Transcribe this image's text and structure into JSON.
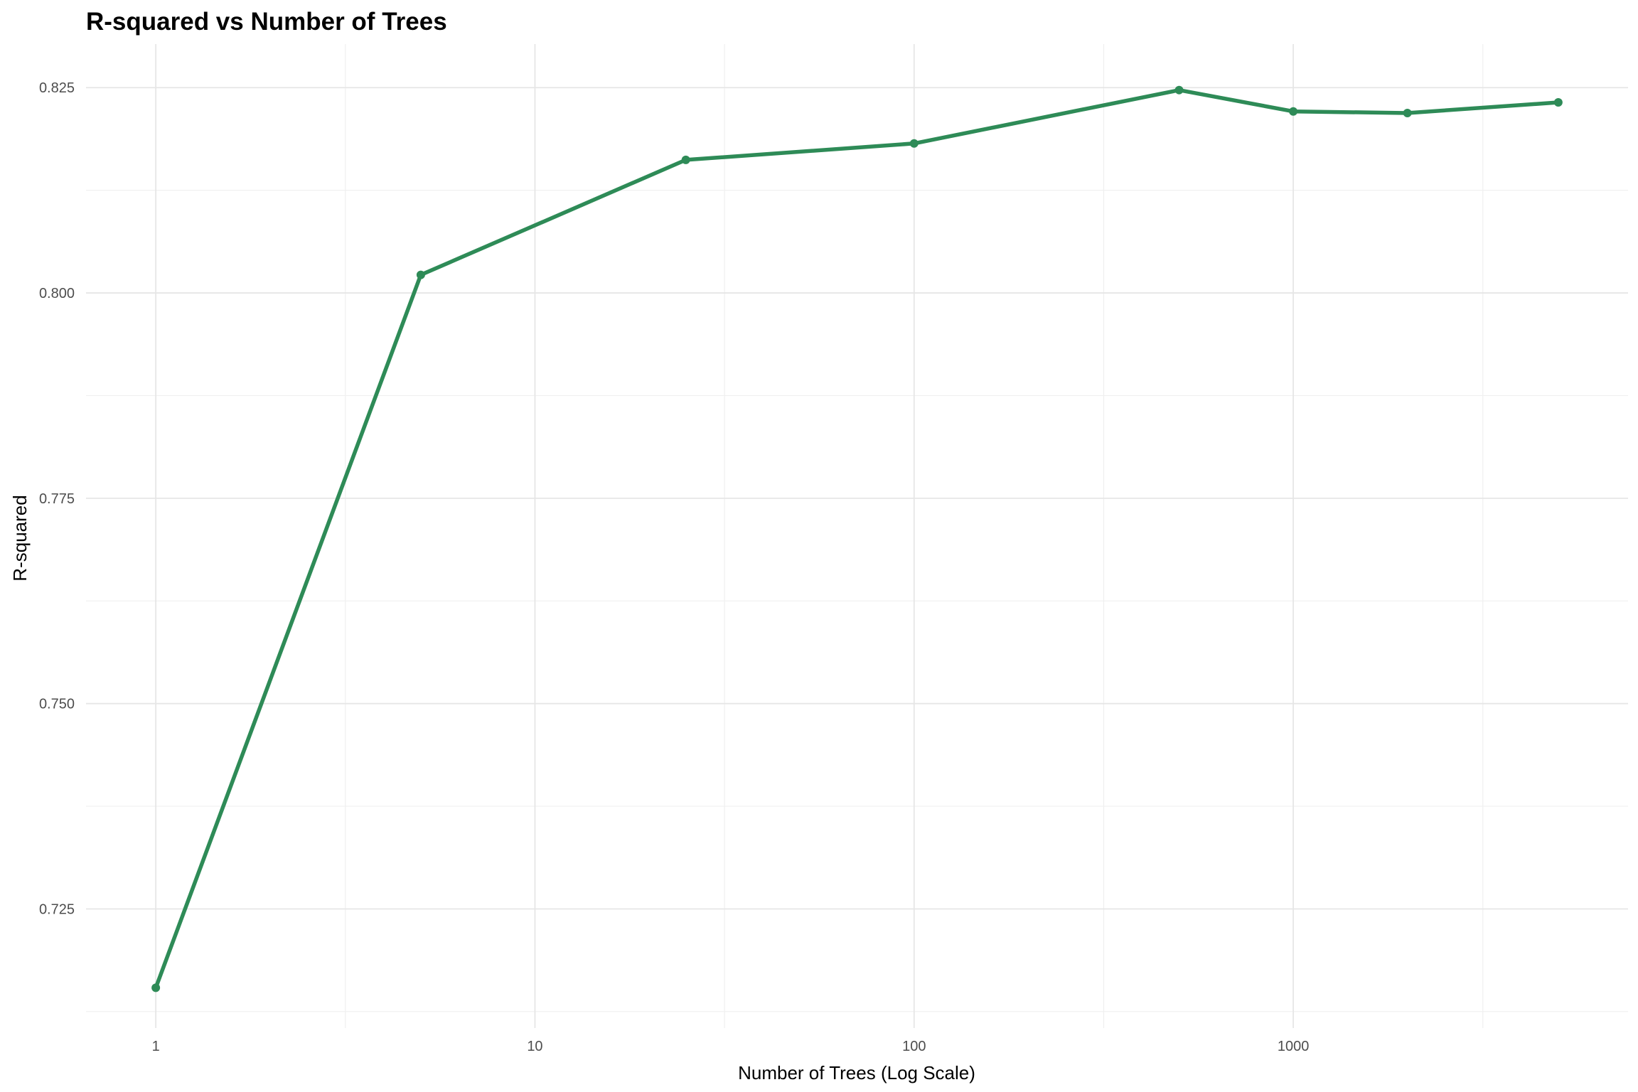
{
  "chart_data": {
    "type": "line",
    "title": "R-squared vs Number of Trees",
    "xlabel": "Number of Trees (Log Scale)",
    "ylabel": "R-squared",
    "x_scale": "log10",
    "xlim": [
      1,
      5000
    ],
    "ylim": [
      0.7105,
      0.8303
    ],
    "x_ticks": [
      1,
      10,
      100,
      1000
    ],
    "x_tick_labels": [
      "1",
      "10",
      "100",
      "1000"
    ],
    "y_ticks": [
      0.725,
      0.75,
      0.775,
      0.8,
      0.825
    ],
    "y_tick_labels": [
      "0.725",
      "0.750",
      "0.775",
      "0.800",
      "0.825"
    ],
    "grid": true,
    "series": [
      {
        "x": [
          1,
          5,
          25,
          100,
          500,
          1000,
          2000,
          5000
        ],
        "y": [
          0.7154,
          0.8022,
          0.8162,
          0.8182,
          0.8247,
          0.8221,
          0.8219,
          0.8232
        ],
        "color": "#2e8b57"
      }
    ]
  }
}
